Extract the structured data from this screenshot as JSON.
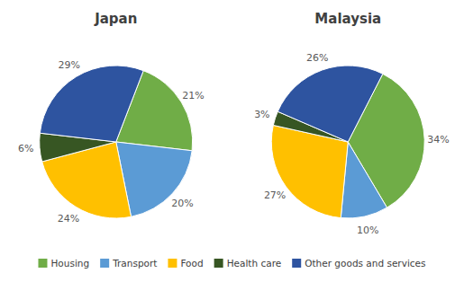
{
  "chart_data": [
    {
      "type": "pie",
      "title": "Japan",
      "categories": [
        "Housing",
        "Transport",
        "Food",
        "Health care",
        "Other goods and services"
      ],
      "values": [
        21,
        20,
        24,
        6,
        29
      ],
      "value_labels": [
        "21%",
        "20%",
        "24%",
        "6%",
        "29%"
      ],
      "colors": [
        "#70ad47",
        "#5b9bd5",
        "#ffc000",
        "#375623",
        "#2e54a0"
      ],
      "data_labels": true,
      "legend": "bottom"
    },
    {
      "type": "pie",
      "title": "Malaysia",
      "categories": [
        "Housing",
        "Transport",
        "Food",
        "Health care",
        "Other goods and services"
      ],
      "values": [
        34,
        10,
        27,
        3,
        26
      ],
      "value_labels": [
        "34%",
        "10%",
        "27%",
        "3%",
        "26%"
      ],
      "colors": [
        "#70ad47",
        "#5b9bd5",
        "#ffc000",
        "#375623",
        "#2e54a0"
      ],
      "data_labels": true,
      "legend": "bottom"
    }
  ]
}
